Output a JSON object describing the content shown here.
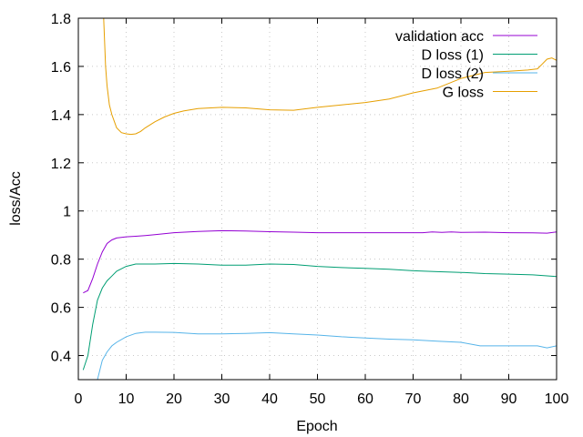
{
  "chart_data": {
    "type": "line",
    "title": "",
    "xlabel": "Epoch",
    "ylabel": "loss/Acc",
    "xlim": [
      0,
      100
    ],
    "ylim": [
      0.3,
      1.8
    ],
    "xticks": [
      0,
      10,
      20,
      30,
      40,
      50,
      60,
      70,
      80,
      90,
      100
    ],
    "yticks": [
      0.4,
      0.6,
      0.8,
      1.0,
      1.2,
      1.4,
      1.6,
      1.8
    ],
    "xtick_labels": [
      "0",
      "10",
      "20",
      "30",
      "40",
      "50",
      "60",
      "70",
      "80",
      "90",
      "100"
    ],
    "ytick_labels": [
      "0.4",
      "0.6",
      "0.8",
      "1",
      "1.2",
      "1.4",
      "1.6",
      "1.8"
    ],
    "grid": true,
    "legend_position": "top-right",
    "series": [
      {
        "name": "validation acc",
        "color": "#9400d3",
        "x": [
          1,
          2,
          3,
          4,
          5,
          6,
          7,
          8,
          9,
          10,
          12,
          14,
          16,
          20,
          25,
          30,
          35,
          40,
          45,
          50,
          55,
          60,
          65,
          70,
          72,
          74,
          76,
          78,
          80,
          85,
          90,
          95,
          98,
          100
        ],
        "y": [
          0.66,
          0.67,
          0.72,
          0.78,
          0.83,
          0.865,
          0.88,
          0.888,
          0.89,
          0.893,
          0.895,
          0.898,
          0.902,
          0.91,
          0.915,
          0.918,
          0.917,
          0.914,
          0.912,
          0.91,
          0.91,
          0.91,
          0.91,
          0.91,
          0.91,
          0.913,
          0.911,
          0.913,
          0.911,
          0.912,
          0.91,
          0.909,
          0.908,
          0.913
        ]
      },
      {
        "name": "D loss (1)",
        "color": "#009e73",
        "x": [
          1,
          2,
          3,
          4,
          5,
          6,
          7,
          8,
          10,
          12,
          14,
          16,
          20,
          25,
          30,
          35,
          40,
          45,
          50,
          55,
          60,
          65,
          70,
          75,
          80,
          85,
          90,
          95,
          100
        ],
        "y": [
          0.34,
          0.4,
          0.53,
          0.63,
          0.68,
          0.71,
          0.73,
          0.75,
          0.77,
          0.78,
          0.78,
          0.78,
          0.782,
          0.78,
          0.775,
          0.775,
          0.78,
          0.778,
          0.77,
          0.765,
          0.762,
          0.758,
          0.752,
          0.748,
          0.745,
          0.74,
          0.738,
          0.735,
          0.728
        ]
      },
      {
        "name": "D loss (2)",
        "color": "#56b4e9",
        "x": [
          4,
          5,
          6,
          7,
          8,
          10,
          12,
          14,
          16,
          20,
          25,
          30,
          35,
          40,
          45,
          50,
          55,
          60,
          65,
          70,
          75,
          80,
          84,
          88,
          92,
          96,
          98,
          100
        ],
        "y": [
          0.3,
          0.38,
          0.415,
          0.44,
          0.455,
          0.478,
          0.492,
          0.497,
          0.497,
          0.496,
          0.49,
          0.49,
          0.492,
          0.495,
          0.49,
          0.485,
          0.478,
          0.473,
          0.468,
          0.465,
          0.46,
          0.455,
          0.44,
          0.44,
          0.44,
          0.44,
          0.432,
          0.44
        ]
      },
      {
        "name": "G loss",
        "color": "#e69f00",
        "x": [
          5.3,
          5.7,
          6,
          6.5,
          7,
          8,
          9,
          10,
          11,
          12,
          13,
          14,
          16,
          18,
          20,
          22,
          25,
          30,
          35,
          40,
          45,
          50,
          55,
          60,
          65,
          70,
          75,
          80,
          85,
          90,
          94,
          96,
          97,
          98,
          99,
          100
        ],
        "y": [
          1.8,
          1.6,
          1.52,
          1.44,
          1.4,
          1.345,
          1.325,
          1.32,
          1.318,
          1.32,
          1.33,
          1.345,
          1.37,
          1.39,
          1.405,
          1.415,
          1.425,
          1.43,
          1.428,
          1.42,
          1.418,
          1.43,
          1.44,
          1.45,
          1.465,
          1.49,
          1.51,
          1.55,
          1.575,
          1.58,
          1.585,
          1.59,
          1.61,
          1.63,
          1.635,
          1.625
        ]
      }
    ]
  }
}
